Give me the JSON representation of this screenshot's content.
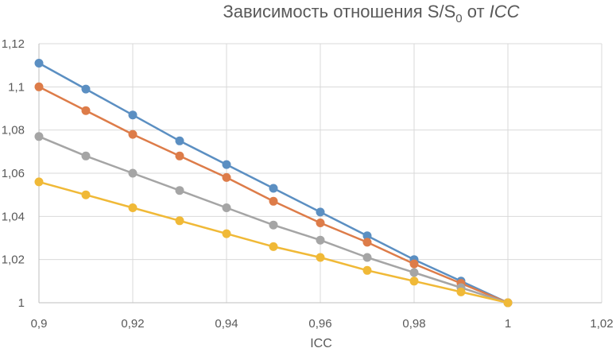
{
  "chart_data": {
    "type": "line",
    "title": {
      "prefix": "Зависимость отношения S/S",
      "subscript": "0",
      "middle": " от ",
      "italic": "ICC"
    },
    "xlabel": "ICC",
    "ylabel": "",
    "xlim": [
      0.9,
      1.02
    ],
    "ylim": [
      1,
      1.12
    ],
    "x_ticks": [
      "0,9",
      "0,92",
      "0,94",
      "0,96",
      "0,98",
      "1",
      "1,02"
    ],
    "y_ticks": [
      "1",
      "1,02",
      "1,04",
      "1,06",
      "1,08",
      "1,1",
      "1,12"
    ],
    "grid": true,
    "legend": "none",
    "x": [
      0.9,
      0.91,
      0.92,
      0.93,
      0.94,
      0.95,
      0.96,
      0.97,
      0.98,
      0.99,
      1.0
    ],
    "series": [
      {
        "color": "#5b8fc2",
        "values": [
          1.111,
          1.099,
          1.087,
          1.075,
          1.064,
          1.053,
          1.042,
          1.031,
          1.02,
          1.01,
          1.0
        ]
      },
      {
        "color": "#dd7c49",
        "values": [
          1.1,
          1.089,
          1.078,
          1.068,
          1.058,
          1.047,
          1.037,
          1.028,
          1.018,
          1.009,
          1.0
        ]
      },
      {
        "color": "#a5a5a5",
        "values": [
          1.077,
          1.068,
          1.06,
          1.052,
          1.044,
          1.036,
          1.029,
          1.021,
          1.014,
          1.007,
          1.0
        ]
      },
      {
        "color": "#f0b937",
        "values": [
          1.056,
          1.05,
          1.044,
          1.038,
          1.032,
          1.026,
          1.021,
          1.015,
          1.01,
          1.005,
          1.0
        ]
      }
    ]
  }
}
